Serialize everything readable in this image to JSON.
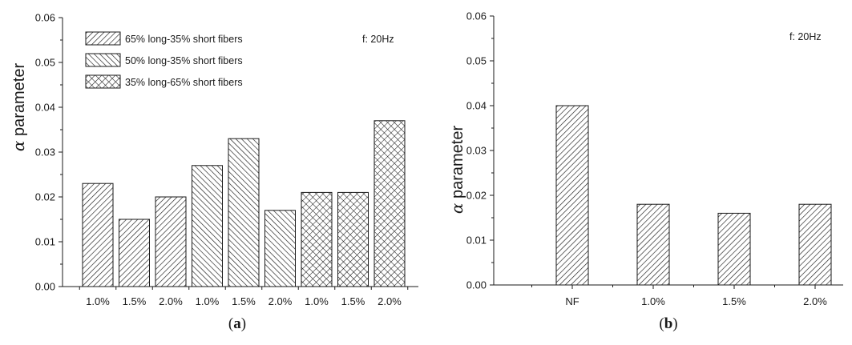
{
  "chart_data": [
    {
      "type": "bar",
      "panel_label": {
        "open": "(",
        "letter": "a",
        "close": ")"
      },
      "ylabel": {
        "symbol": "α",
        "text": " parameter"
      },
      "ylim": [
        0,
        0.06
      ],
      "yticks": [
        "0.00",
        "0.01",
        "0.02",
        "0.03",
        "0.04",
        "0.05",
        "0.06"
      ],
      "annotation": "f: 20Hz",
      "legend_position": "top-left",
      "grid": false,
      "categories": [
        "1.0%",
        "1.5%",
        "2.0%",
        "1.0%",
        "1.5%",
        "2.0%",
        "1.0%",
        "1.5%",
        "2.0%"
      ],
      "series": [
        {
          "name": "65% long-35% short fibers",
          "pattern": "diagonal-right",
          "values": [
            0.023,
            0.015,
            0.02,
            null,
            null,
            null,
            null,
            null,
            null
          ]
        },
        {
          "name": "50% long-35% short fibers",
          "pattern": "diagonal-left",
          "values": [
            null,
            null,
            null,
            0.027,
            0.033,
            0.017,
            null,
            null,
            null
          ]
        },
        {
          "name": "35% long-65% short fibers",
          "pattern": "crosshatch",
          "values": [
            null,
            null,
            null,
            null,
            null,
            null,
            0.021,
            0.021,
            0.037
          ]
        }
      ]
    },
    {
      "type": "bar",
      "panel_label": {
        "open": "(",
        "letter": "b",
        "close": ")"
      },
      "ylabel": {
        "symbol": "α",
        "text": " parameter"
      },
      "ylim": [
        0,
        0.06
      ],
      "yticks": [
        "0.00",
        "0.01",
        "0.02",
        "0.03",
        "0.04",
        "0.05",
        "0.06"
      ],
      "annotation": "f: 20Hz",
      "grid": false,
      "categories": [
        "NF",
        "1.0%",
        "1.5%",
        "2.0%"
      ],
      "values": [
        0.04,
        0.018,
        0.016,
        0.018
      ],
      "pattern": "diagonal-right"
    }
  ]
}
